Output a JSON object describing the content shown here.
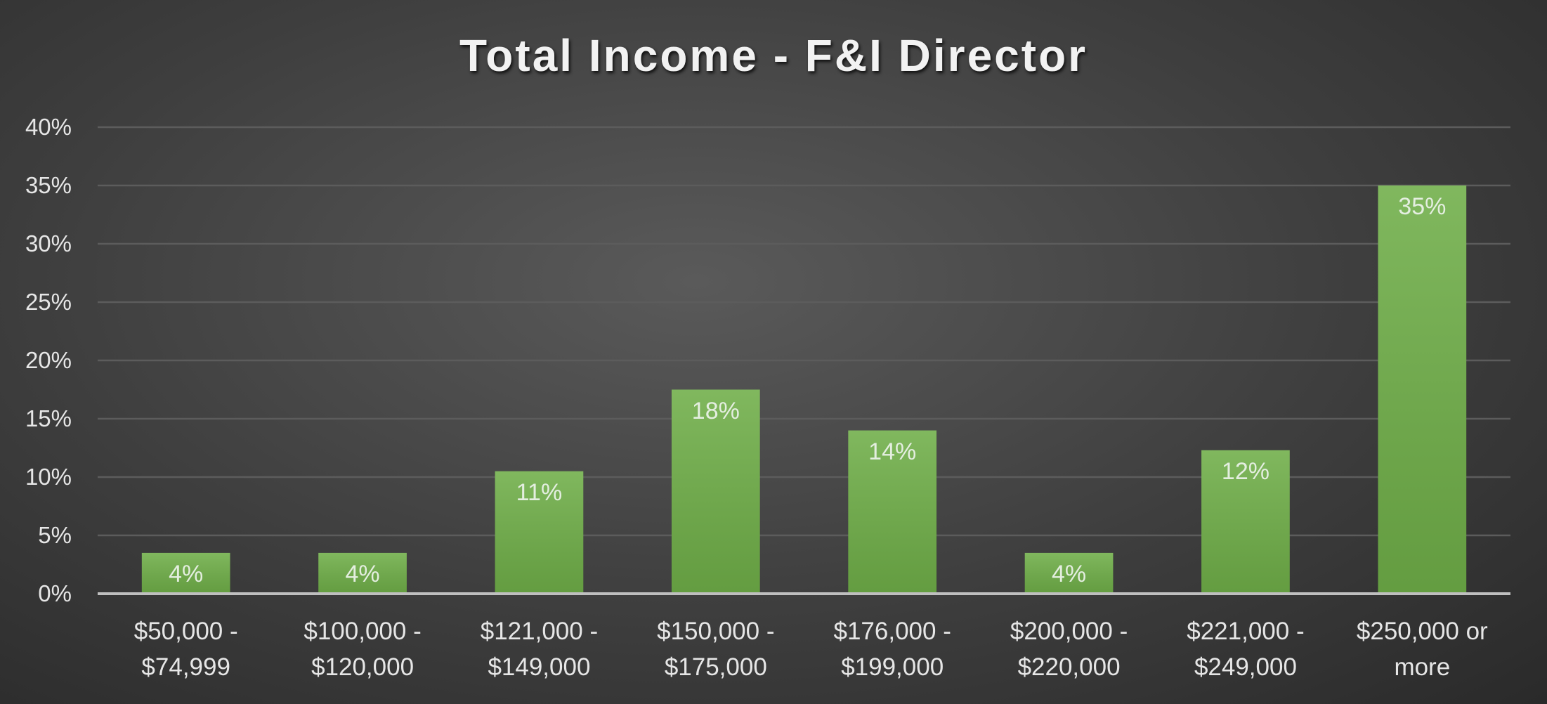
{
  "chart_data": {
    "type": "bar",
    "title": "Total Income - F&I Director",
    "categories": [
      "$50,000 - $74,999",
      "$100,000 - $120,000",
      "$121,000 - $149,000",
      "$150,000 - $175,000",
      "$176,000 - $199,000",
      "$200,000 - $220,000",
      "$221,000 - $249,000",
      "$250,000 or more"
    ],
    "values": [
      3.5,
      3.5,
      10.5,
      17.5,
      14,
      3.5,
      12.3,
      35
    ],
    "value_labels": [
      "4%",
      "4%",
      "11%",
      "18%",
      "14%",
      "4%",
      "12%",
      "35%"
    ],
    "color": "#6fae48",
    "ylim": [
      0,
      40
    ],
    "yticks": [
      {
        "value": 0,
        "label": "0%"
      },
      {
        "value": 5,
        "label": "5%"
      },
      {
        "value": 10,
        "label": "10%"
      },
      {
        "value": 15,
        "label": "15%"
      },
      {
        "value": 20,
        "label": "20%"
      },
      {
        "value": 25,
        "label": "25%"
      },
      {
        "value": 30,
        "label": "30%"
      },
      {
        "value": 35,
        "label": "35%"
      },
      {
        "value": 40,
        "label": "40%"
      }
    ],
    "grid": true
  }
}
